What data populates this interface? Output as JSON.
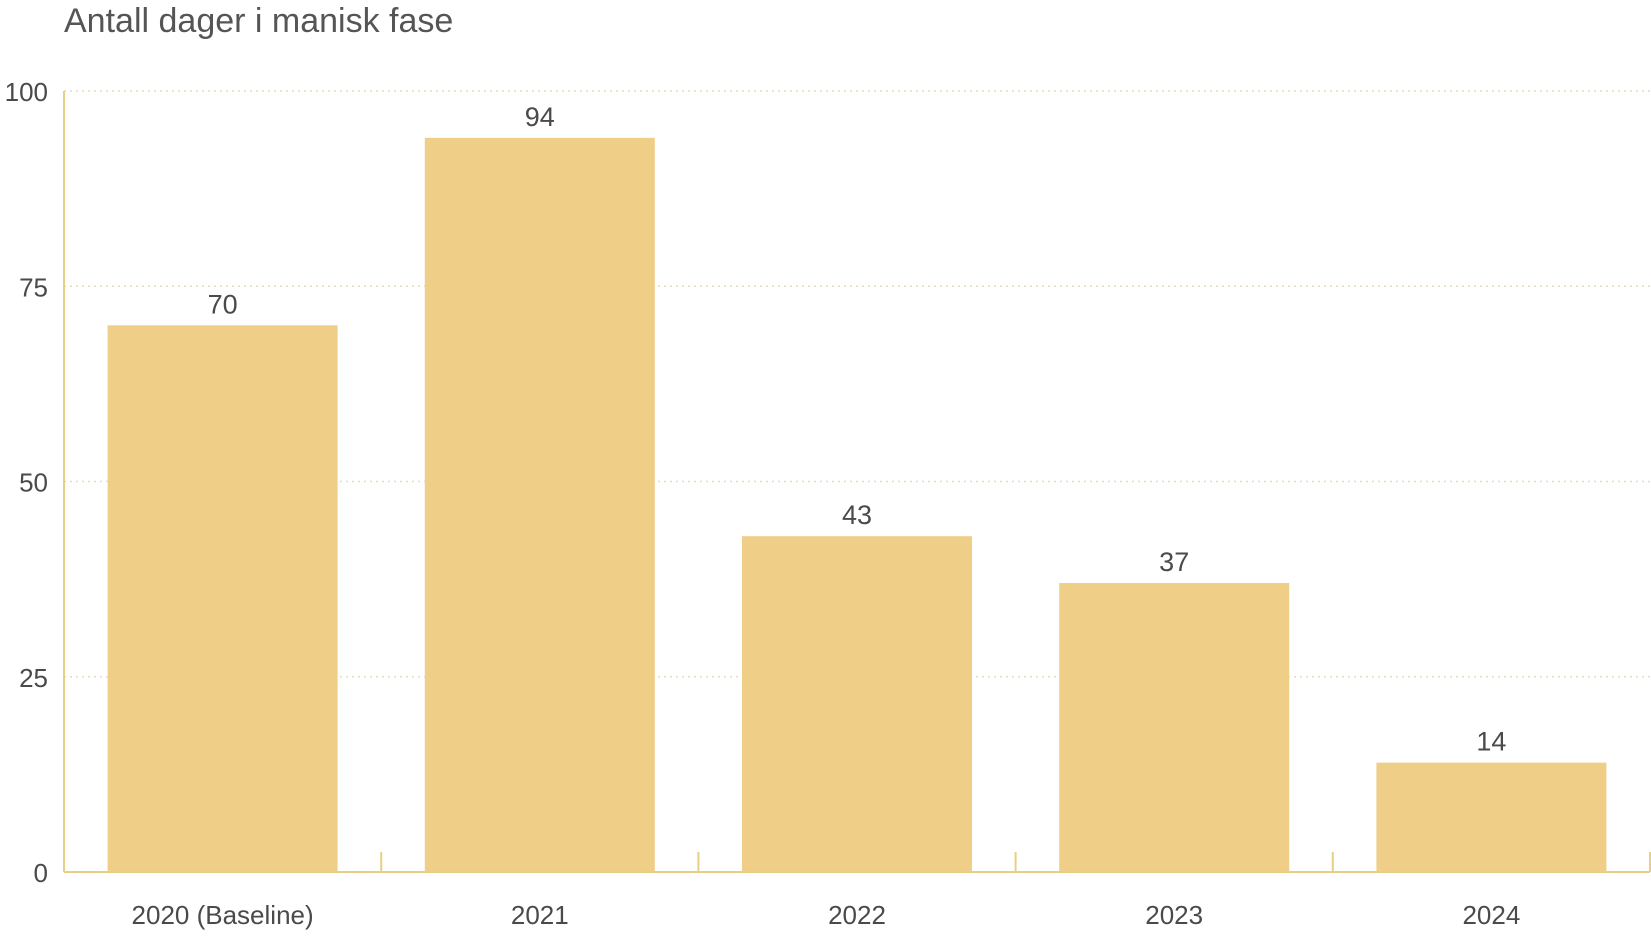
{
  "chart_data": {
    "type": "bar",
    "title": "Antall dager i manisk fase",
    "categories": [
      "2020 (Baseline)",
      "2021",
      "2022",
      "2023",
      "2024"
    ],
    "values": [
      70,
      94,
      43,
      37,
      14
    ],
    "xlabel": "",
    "ylabel": "",
    "ylim": [
      0,
      100
    ],
    "yticks": [
      0,
      25,
      50,
      75,
      100
    ],
    "grid": true,
    "show_data_labels": true,
    "legend": "none",
    "colors": {
      "bar": "#efce88",
      "axis": "#e9cf85",
      "grid": "#e6dcb8",
      "text": "#4a4a4a",
      "title": "#555555"
    }
  }
}
